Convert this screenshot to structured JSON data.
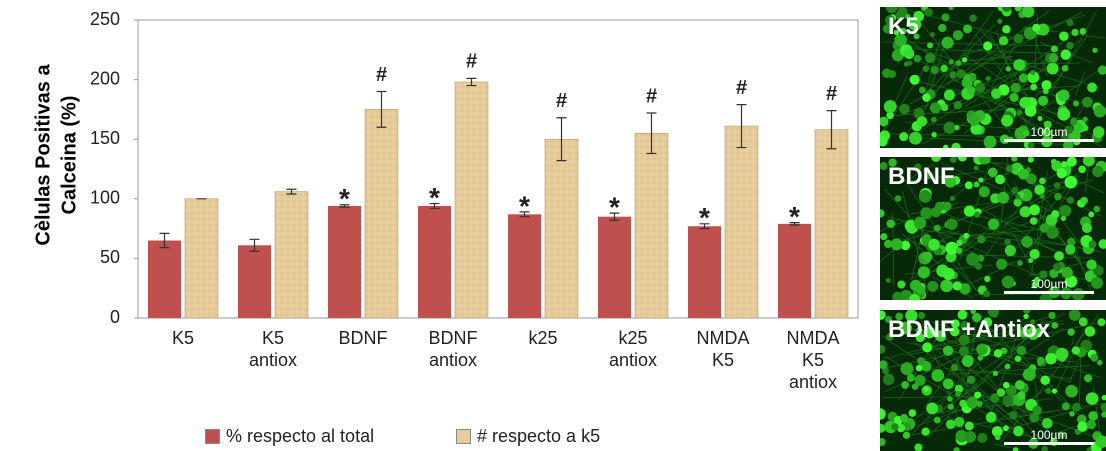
{
  "chart_data": {
    "type": "bar",
    "y_label": [
      "Cèlulas Positivas a",
      "Calceina (%)"
    ],
    "categories": [
      "K5",
      "K5 antiox",
      "BDNF",
      "BDNF antiox",
      "k25",
      "k25 antiox",
      "NMDA K5",
      "NMDA K5 antiox"
    ],
    "series": [
      {
        "name": "% respecto al total",
        "color": "#c0504d",
        "values": [
          65,
          61,
          94,
          94,
          87,
          85,
          77,
          79
        ],
        "errors": [
          6,
          5,
          1,
          2,
          2,
          3,
          2,
          1
        ],
        "annotations": [
          null,
          null,
          "*",
          "*",
          "*",
          "*",
          "*",
          "*"
        ]
      },
      {
        "name": "# respecto a k5",
        "color": "#e6cc9a",
        "values": [
          100,
          106,
          175,
          198,
          150,
          155,
          161,
          158
        ],
        "errors": [
          0,
          2,
          15,
          3,
          18,
          17,
          18,
          16
        ],
        "annotations": [
          null,
          null,
          "#",
          "#",
          "#",
          "#",
          "#",
          "#"
        ]
      }
    ],
    "ylim": [
      0,
      250
    ],
    "yticks": [
      0,
      50,
      100,
      150,
      200,
      250
    ]
  },
  "images": [
    {
      "label": "K5",
      "scale": "100µm"
    },
    {
      "label": "BDNF",
      "scale": "100µm"
    },
    {
      "label": "BDNF +Antiox",
      "scale": "100µm"
    }
  ]
}
